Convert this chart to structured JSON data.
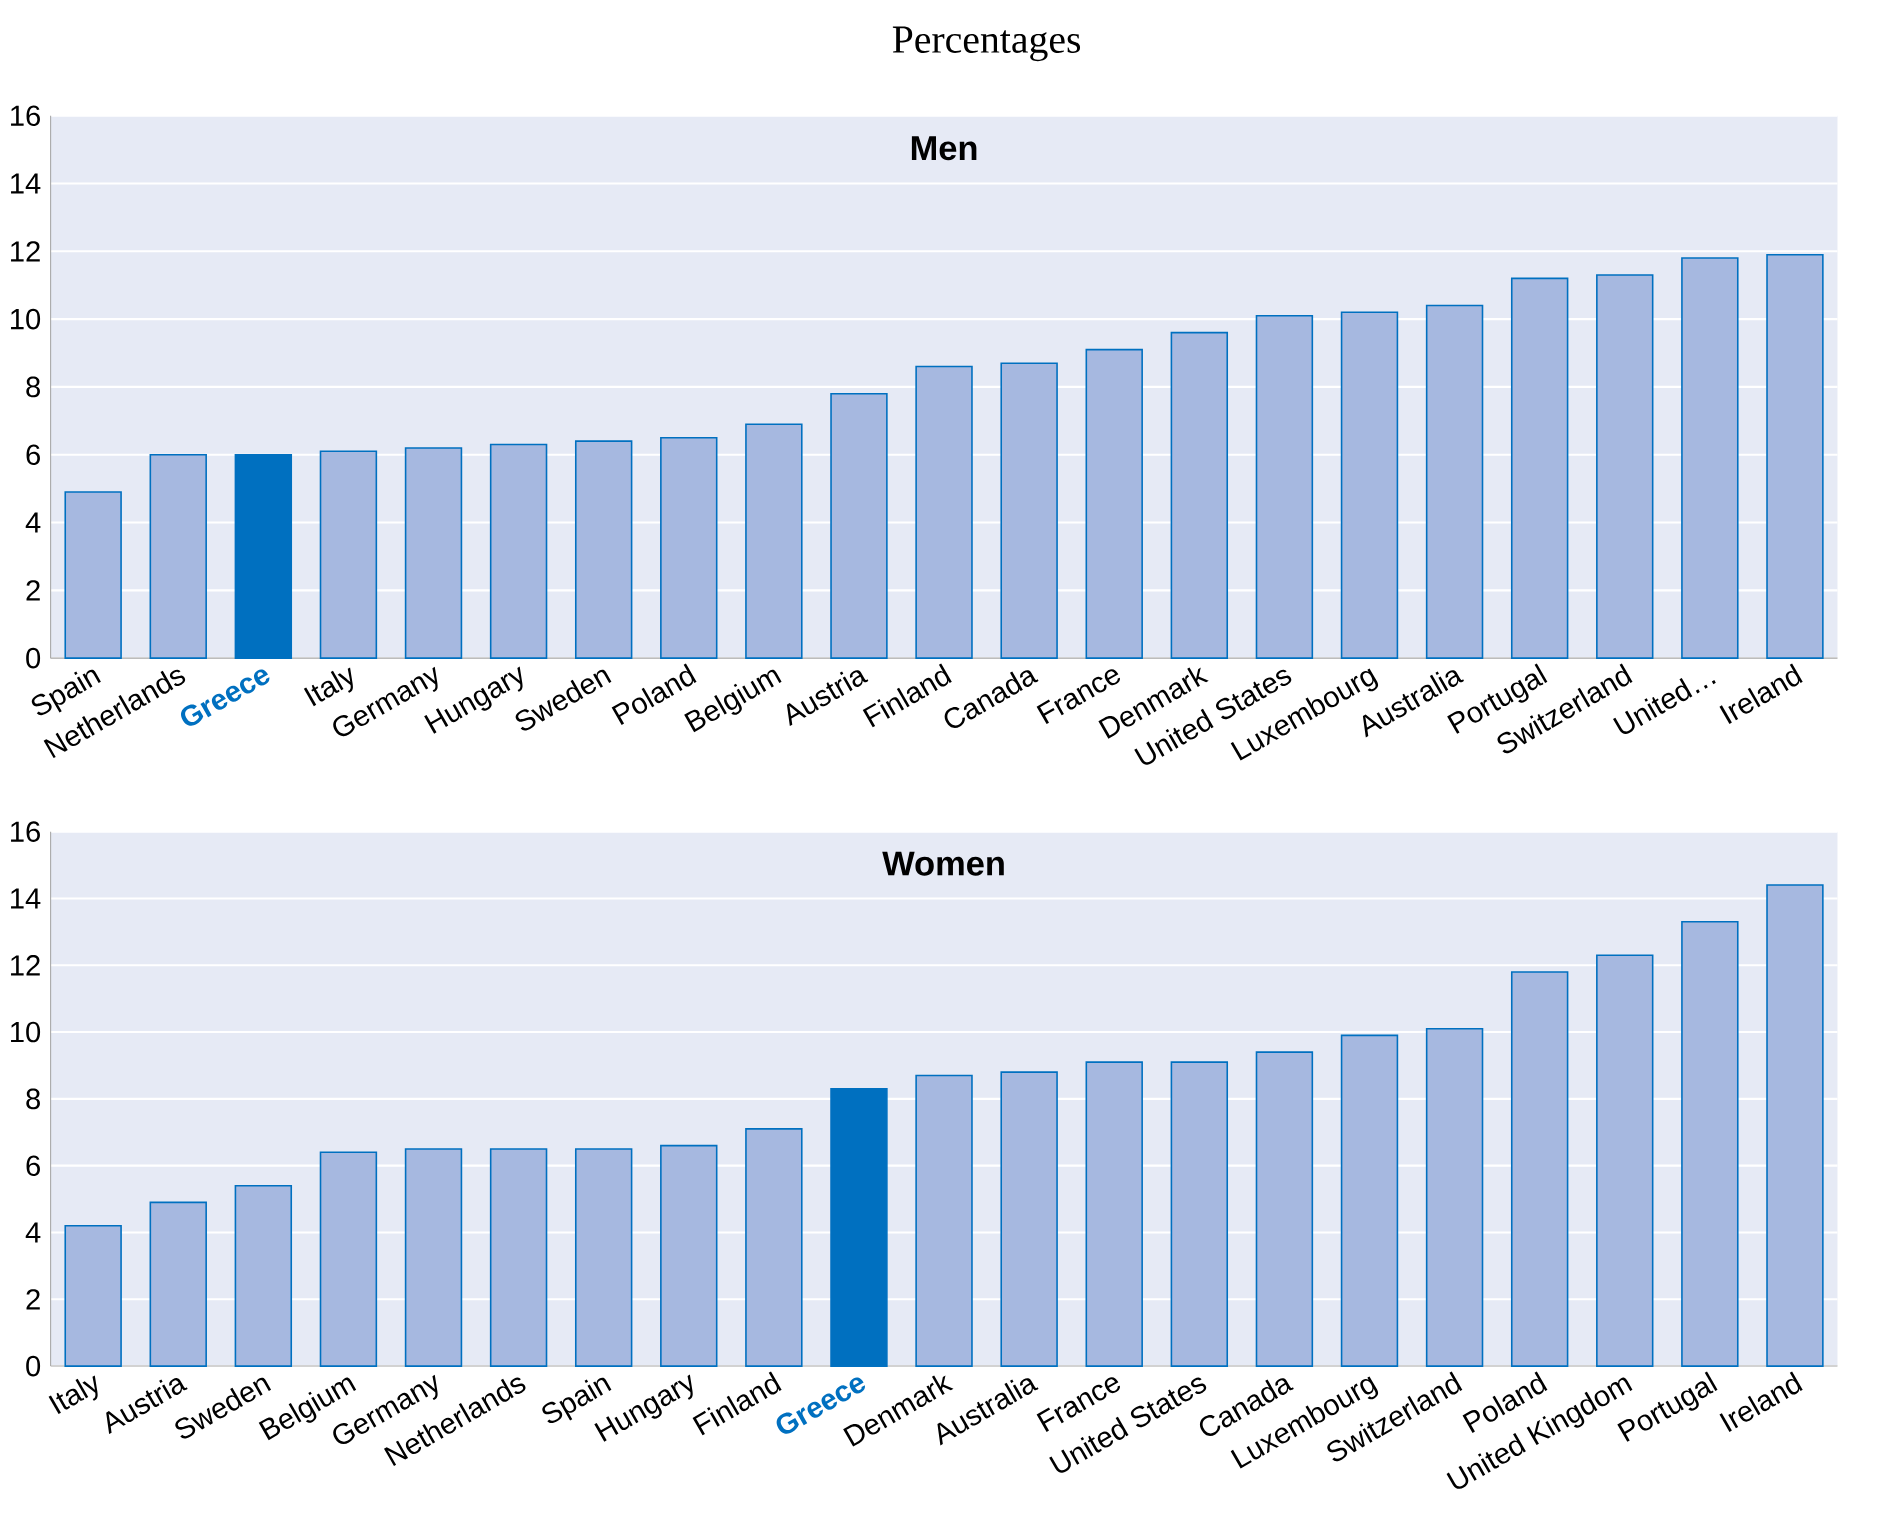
{
  "chart_data": [
    {
      "type": "bar",
      "title": "Percentages",
      "subtitle": "Men",
      "categories": [
        "Spain",
        "Netherlands",
        "**Greece**",
        "Italy",
        "Germany",
        "Hungary",
        "Sweden",
        "Poland",
        "Belgium",
        "Austria",
        "Finland",
        "Canada",
        "France",
        "Denmark",
        "United States",
        "Luxembourg",
        "Australia",
        "Portugal",
        "Switzerland",
        "United…",
        "Ireland"
      ],
      "values": [
        4.9,
        6.0,
        6.0,
        6.1,
        6.2,
        6.3,
        6.4,
        6.5,
        6.9,
        7.8,
        8.6,
        8.7,
        9.1,
        9.6,
        10.1,
        10.2,
        10.4,
        11.2,
        11.3,
        11.8,
        11.9
      ],
      "colors": [
        "#a6b8e0",
        "#a6b8e0",
        "#0070c0",
        "#a6b8e0",
        "#a6b8e0",
        "#a6b8e0",
        "#a6b8e0",
        "#a6b8e0",
        "#a6b8e0",
        "#a6b8e0",
        "#a6b8e0",
        "#a6b8e0",
        "#a6b8e0",
        "#a6b8e0",
        "#a6b8e0",
        "#a6b8e0",
        "#a6b8e0",
        "#a6b8e0",
        "#a6b8e0",
        "#a6b8e0",
        "#a6b8e0"
      ],
      "ylim": [
        0,
        16
      ],
      "yticks": [
        0,
        2,
        4,
        6,
        8,
        10,
        12,
        14,
        16
      ],
      "grid": "y"
    },
    {
      "type": "bar",
      "subtitle": "Women",
      "categories": [
        "Italy",
        "Austria",
        "Sweden",
        "Belgium",
        "Germany",
        "Netherlands",
        "Spain",
        "Hungary",
        "Finland",
        "**Greece**",
        "Denmark",
        "Australia",
        "France",
        "United States",
        "Canada",
        "Luxembourg",
        "Switzerland",
        "Poland",
        "United Kingdom",
        "Portugal",
        "Ireland"
      ],
      "values": [
        4.2,
        4.9,
        5.4,
        6.4,
        6.5,
        6.5,
        6.5,
        6.6,
        7.1,
        8.3,
        8.7,
        8.8,
        9.1,
        9.1,
        9.4,
        9.9,
        10.1,
        11.8,
        12.3,
        13.3,
        14.4
      ],
      "colors": [
        "#a6b8e0",
        "#a6b8e0",
        "#a6b8e0",
        "#a6b8e0",
        "#a6b8e0",
        "#a6b8e0",
        "#a6b8e0",
        "#a6b8e0",
        "#a6b8e0",
        "#0070c0",
        "#a6b8e0",
        "#a6b8e0",
        "#a6b8e0",
        "#a6b8e0",
        "#a6b8e0",
        "#a6b8e0",
        "#a6b8e0",
        "#a6b8e0",
        "#a6b8e0",
        "#a6b8e0",
        "#a6b8e0"
      ],
      "ylim": [
        0,
        16
      ],
      "yticks": [
        0,
        2,
        4,
        6,
        8,
        10,
        12,
        14,
        16
      ],
      "grid": "y"
    }
  ]
}
